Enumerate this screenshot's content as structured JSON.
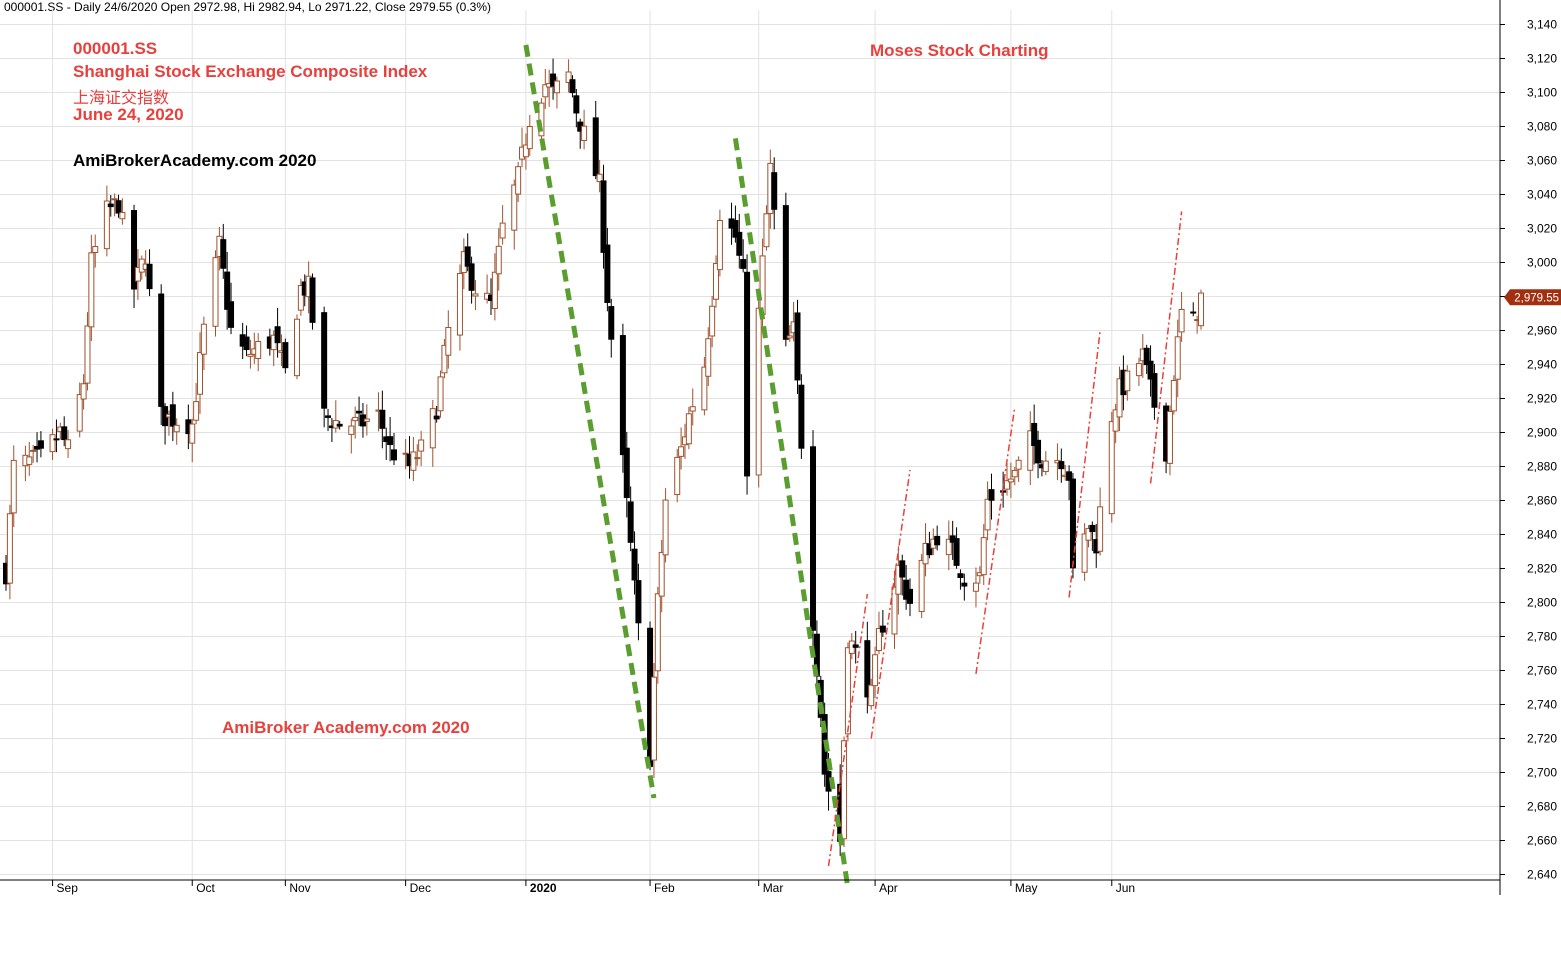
{
  "header_text": "000001.SS - Daily 24/6/2020 Open 2972.98, Hi 2982.94, Lo 2971.22, Close 2979.55 (0.3%)",
  "annotations": {
    "ticker": "000001.SS",
    "index_name": "Shanghai Stock Exchange Composite Index",
    "index_name_cn": "上海证交指数",
    "date": "June 24, 2020",
    "watermark_black": "AmiBrokerAcademy.com  2020",
    "watermark_red": "AmiBroker Academy.com  2020",
    "brand": "Moses Stock Charting"
  },
  "colors": {
    "up_candle": "#a0522d",
    "down_candle": "#000000",
    "annotation_text": "#e8403c",
    "trend_green": "#5a9e2f",
    "trend_red": "#e8403c",
    "price_badge": "#a03010"
  },
  "chart_data": {
    "type": "candlestick",
    "ticker": "000001.SS",
    "period": "Daily",
    "ylim": [
      2630,
      3150
    ],
    "yticks": [
      2640,
      2660,
      2680,
      2700,
      2720,
      2740,
      2760,
      2780,
      2800,
      2820,
      2840,
      2860,
      2880,
      2900,
      2920,
      2940,
      2960,
      2980,
      3000,
      3020,
      3040,
      3060,
      3080,
      3100,
      3120,
      3140
    ],
    "ytick_labels": [
      "2,640",
      "2,660",
      "2,680",
      "2,700",
      "2,720",
      "2,740",
      "2,760",
      "2,780",
      "2,800",
      "2,820",
      "2,840",
      "2,860",
      "2,880",
      "2,900",
      "2,920",
      "2,940",
      "2,960",
      "2,980",
      "3,000",
      "3,020",
      "3,040",
      "3,060",
      "3,080",
      "3,100",
      "3,120",
      "3,140"
    ],
    "x_start": "2019-08-21",
    "x_end": "2020-06-24",
    "month_labels": [
      {
        "label": "Sep",
        "date": "2019-09-02"
      },
      {
        "label": "Oct",
        "date": "2019-10-08"
      },
      {
        "label": "Nov",
        "date": "2019-11-01"
      },
      {
        "label": "Dec",
        "date": "2019-12-02"
      },
      {
        "label": "2020",
        "date": "2020-01-02",
        "bold": true
      },
      {
        "label": "Feb",
        "date": "2020-02-03"
      },
      {
        "label": "Mar",
        "date": "2020-03-02"
      },
      {
        "label": "Apr",
        "date": "2020-04-01"
      },
      {
        "label": "May",
        "date": "2020-05-06"
      },
      {
        "label": "Jun",
        "date": "2020-06-01"
      }
    ],
    "anchors": [
      [
        "2019-08-21",
        2818
      ],
      [
        "2019-08-23",
        2880
      ],
      [
        "2019-08-30",
        2885
      ],
      [
        "2019-09-04",
        2900
      ],
      [
        "2019-09-06",
        2890
      ],
      [
        "2019-09-10",
        2930
      ],
      [
        "2019-09-12",
        3000
      ],
      [
        "2019-09-16",
        3030
      ],
      [
        "2019-09-19",
        3035
      ],
      [
        "2019-09-23",
        2985
      ],
      [
        "2019-09-26",
        3005
      ],
      [
        "2019-09-30",
        2910
      ],
      [
        "2019-10-08",
        2905
      ],
      [
        "2019-10-11",
        2960
      ],
      [
        "2019-10-15",
        3010
      ],
      [
        "2019-10-18",
        2960
      ],
      [
        "2019-10-22",
        2945
      ],
      [
        "2019-10-25",
        2950
      ],
      [
        "2019-10-29",
        2955
      ],
      [
        "2019-11-01",
        2935
      ],
      [
        "2019-11-05",
        2985
      ],
      [
        "2019-11-07",
        2985
      ],
      [
        "2019-11-11",
        2910
      ],
      [
        "2019-11-15",
        2905
      ],
      [
        "2019-11-20",
        2905
      ],
      [
        "2019-11-25",
        2910
      ],
      [
        "2019-11-28",
        2890
      ],
      [
        "2019-12-03",
        2880
      ],
      [
        "2019-12-06",
        2890
      ],
      [
        "2019-12-10",
        2915
      ],
      [
        "2019-12-13",
        2960
      ],
      [
        "2019-12-17",
        3000
      ],
      [
        "2019-12-20",
        2985
      ],
      [
        "2019-12-24",
        2975
      ],
      [
        "2019-12-27",
        3020
      ],
      [
        "2019-12-31",
        3050
      ],
      [
        "2020-01-03",
        3085
      ],
      [
        "2020-01-07",
        3105
      ],
      [
        "2020-01-09",
        3100
      ],
      [
        "2020-01-13",
        3110
      ],
      [
        "2020-01-15",
        3090
      ],
      [
        "2020-01-17",
        3075
      ],
      [
        "2020-01-21",
        3045
      ],
      [
        "2020-01-23",
        2980
      ],
      [
        "2020-02-03",
        2710
      ],
      [
        "2020-02-05",
        2800
      ],
      [
        "2020-02-07",
        2860
      ],
      [
        "2020-02-11",
        2890
      ],
      [
        "2020-02-13",
        2910
      ],
      [
        "2020-02-17",
        2940
      ],
      [
        "2020-02-19",
        2980
      ],
      [
        "2020-02-21",
        3030
      ],
      [
        "2020-02-25",
        3015
      ],
      [
        "2020-02-27",
        2990
      ],
      [
        "2020-02-28",
        2880
      ],
      [
        "2020-03-03",
        3000
      ],
      [
        "2020-03-05",
        3055
      ],
      [
        "2020-03-09",
        2950
      ],
      [
        "2020-03-11",
        2960
      ],
      [
        "2020-03-13",
        2895
      ],
      [
        "2020-03-16",
        2790
      ],
      [
        "2020-03-18",
        2735
      ],
      [
        "2020-03-19",
        2700
      ],
      [
        "2020-03-23",
        2660
      ],
      [
        "2020-03-25",
        2780
      ],
      [
        "2020-03-27",
        2770
      ],
      [
        "2020-03-31",
        2745
      ],
      [
        "2020-04-02",
        2780
      ],
      [
        "2020-04-07",
        2820
      ],
      [
        "2020-04-10",
        2800
      ],
      [
        "2020-04-14",
        2830
      ],
      [
        "2020-04-17",
        2840
      ],
      [
        "2020-04-21",
        2830
      ],
      [
        "2020-04-24",
        2815
      ],
      [
        "2020-04-28",
        2815
      ],
      [
        "2020-04-30",
        2860
      ],
      [
        "2020-05-07",
        2875
      ],
      [
        "2020-05-11",
        2895
      ],
      [
        "2020-05-14",
        2885
      ],
      [
        "2020-05-19",
        2885
      ],
      [
        "2020-05-21",
        2875
      ],
      [
        "2020-05-22",
        2815
      ],
      [
        "2020-05-26",
        2845
      ],
      [
        "2020-05-28",
        2835
      ],
      [
        "2020-06-01",
        2910
      ],
      [
        "2020-06-03",
        2925
      ],
      [
        "2020-06-05",
        2930
      ],
      [
        "2020-06-09",
        2945
      ],
      [
        "2020-06-11",
        2925
      ],
      [
        "2020-06-15",
        2890
      ],
      [
        "2020-06-17",
        2935
      ],
      [
        "2020-06-19",
        2970
      ],
      [
        "2020-06-22",
        2965
      ],
      [
        "2020-06-24",
        2979.55
      ]
    ],
    "last_close": 2979.55,
    "last_close_label": "2,979.55",
    "trendlines": [
      {
        "style": "dashed",
        "color": "green",
        "from": [
          "2020-01-02",
          3128
        ],
        "to": [
          "2020-02-04",
          2685
        ]
      },
      {
        "style": "dashed",
        "color": "green",
        "from": [
          "2020-02-25",
          3073
        ],
        "to": [
          "2020-03-25",
          2632
        ]
      },
      {
        "style": "dashdot",
        "color": "red",
        "from": [
          "2020-03-20",
          2645
        ],
        "to": [
          "2020-03-30",
          2805
        ]
      },
      {
        "style": "dashdot",
        "color": "red",
        "from": [
          "2020-03-31",
          2720
        ],
        "to": [
          "2020-04-10",
          2878
        ]
      },
      {
        "style": "dashdot",
        "color": "red",
        "from": [
          "2020-04-27",
          2758
        ],
        "to": [
          "2020-05-07",
          2915
        ]
      },
      {
        "style": "dashdot",
        "color": "red",
        "from": [
          "2020-05-21",
          2803
        ],
        "to": [
          "2020-05-29",
          2960
        ]
      },
      {
        "style": "dashdot",
        "color": "red",
        "from": [
          "2020-06-11",
          2870
        ],
        "to": [
          "2020-06-19",
          3030
        ]
      }
    ]
  }
}
